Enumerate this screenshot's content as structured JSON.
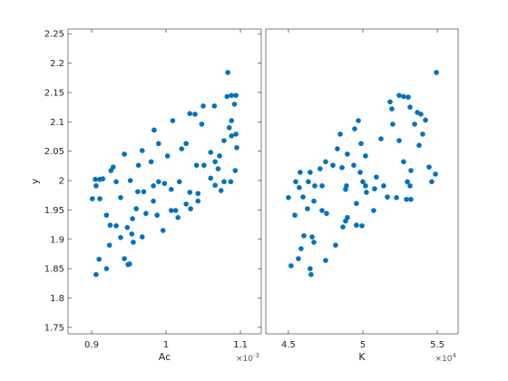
{
  "chart_data": [
    {
      "type": "scatter",
      "xlabel": "Ac",
      "ylabel": "y",
      "x_multiplier": "×10",
      "x_multiplier_exponent": "-3",
      "color": "#0072BD",
      "xlim": [
        0.8683,
        1.128
      ],
      "xticks": [
        0.9,
        1,
        1.1
      ],
      "ylim": [
        1.739,
        2.258
      ],
      "yticks": [
        1.75,
        1.8,
        1.85,
        1.9,
        1.95,
        2,
        2.05,
        2.1,
        2.15,
        2.2,
        2.25
      ],
      "x": [
        1.083,
        1.088,
        1.094,
        1.082,
        1.092,
        1.065,
        1.05,
        1.032,
        1.039,
        1.088,
        1.009,
        1.085,
        1.094,
        1.088,
        1.078,
        1.048,
        0.984,
        0.99,
        1.027,
        0.968,
        1.021,
        1.06,
        1.072,
        1.095,
        1.002,
        1.066,
        0.963,
        1.041,
        1.051,
        1.093,
        1.07,
        0.944,
        0.98,
        0.929,
        0.926,
        0.911,
        0.905,
        0.915,
        0.933,
        0.952,
        0.99,
        0.998,
        1.018,
        1.06,
        1.078,
        1.087,
        1.066,
        0.983,
        0.906,
        0.97,
        0.962,
        1.007,
        1.032,
        1.043,
        1.074,
        0.901,
        0.911,
        0.939,
        1.043,
        0.983,
        1.027,
        1.033,
        1.007,
        1.013,
        0.96,
        0.973,
        0.92,
        0.988,
        1.016,
        0.925,
        0.933,
        0.948,
        0.996,
        0.955,
        0.954,
        0.968,
        0.939,
        0.924,
        0.956,
        0.91,
        0.944,
        0.951,
        0.949,
        0.92,
        0.906
      ],
      "y": [
        2.184,
        2.145,
        2.145,
        2.143,
        2.13,
        2.127,
        2.127,
        2.114,
        2.113,
        2.102,
        2.102,
        2.09,
        2.079,
        2.076,
        2.068,
        2.096,
        2.086,
        2.063,
        2.063,
        2.051,
        2.054,
        2.048,
        2.042,
        2.056,
        2.042,
        2.032,
        2.026,
        2.026,
        2.026,
        2.017,
        2.02,
        2.045,
        2.032,
        2.023,
        2.017,
        2.002,
        2.002,
        2.003,
        1.998,
        2,
        1.998,
        1.995,
        1.998,
        2.004,
        1.998,
        1.998,
        1.992,
        1.991,
        1.991,
        1.981,
        1.981,
        1.985,
        1.98,
        1.978,
        1.983,
        1.969,
        1.969,
        1.971,
        1.965,
        1.965,
        1.96,
        1.952,
        1.949,
        1.949,
        1.952,
        1.944,
        1.941,
        1.941,
        1.937,
        1.924,
        1.923,
        1.92,
        1.915,
        1.935,
        1.909,
        1.904,
        1.903,
        1.89,
        1.895,
        1.866,
        1.867,
        1.858,
        1.857,
        1.85,
        1.84
      ]
    },
    {
      "type": "scatter",
      "xlabel": "K",
      "x_multiplier": "×10",
      "x_multiplier_exponent": "4",
      "color": "#0072BD",
      "xlim": [
        4.348,
        5.64
      ],
      "xticks": [
        4.5,
        5,
        5.5
      ],
      "ylim": [
        1.739,
        2.258
      ],
      "x": [
        5.494,
        5.244,
        5.274,
        5.305,
        5.183,
        5.195,
        5.317,
        5.366,
        5.39,
        5.421,
        5.348,
        4.97,
        4.945,
        4.848,
        5.201,
        4.988,
        5.402,
        5.122,
        5.244,
        5.378,
        4.829,
        4.896,
        5.018,
        5.274,
        4.75,
        4.799,
        4.713,
        4.939,
        4.579,
        4.646,
        4.86,
        5.445,
        5.488,
        5.323,
        4.982,
        5.091,
        4.549,
        4.634,
        4.677,
        4.726,
        4.89,
        5,
        5.018,
        5.14,
        5.299,
        5.463,
        5.317,
        4.573,
        5.024,
        4.884,
        5.079,
        4.5,
        4.598,
        4.671,
        5.165,
        5.226,
        5.293,
        5.323,
        4.957,
        5.073,
        4.628,
        4.726,
        4.756,
        4.543,
        4.896,
        4.957,
        4.994,
        4.884,
        4.866,
        4.659,
        4.671,
        4.817,
        4.585,
        4.75,
        4.567,
        4.518,
        4.646,
        4.652,
        4.604
      ],
      "y": [
        2.184,
        2.145,
        2.143,
        2.142,
        2.134,
        2.122,
        2.125,
        2.116,
        2.113,
        2.103,
        2.096,
        2.102,
        2.088,
        2.079,
        2.096,
        2.063,
        2.079,
        2.071,
        2.068,
        2.06,
        2.054,
        2.045,
        2.042,
        2.032,
        2.032,
        2.026,
        2.02,
        2.026,
        2.014,
        2.014,
        2.022,
        2.023,
        2.011,
        2.017,
        2.014,
        2.006,
        1.998,
        1.998,
        1.991,
        1.991,
        1.991,
        1.998,
        1.991,
        1.991,
        1.998,
        1.998,
        1.991,
        1.988,
        1.98,
        1.985,
        1.986,
        1.971,
        1.972,
        1.965,
        1.972,
        1.971,
        1.968,
        1.968,
        1.961,
        1.949,
        1.952,
        1.949,
        1.944,
        1.941,
        1.937,
        1.924,
        1.923,
        1.931,
        1.921,
        1.904,
        1.895,
        1.89,
        1.884,
        1.864,
        1.867,
        1.855,
        1.85,
        1.84,
        1.906
      ]
    }
  ]
}
